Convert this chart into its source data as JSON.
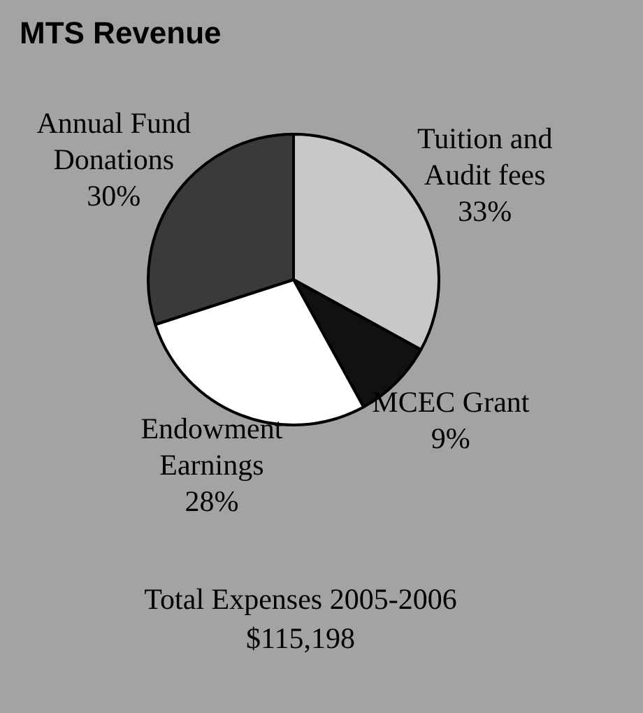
{
  "chart_data": {
    "type": "pie",
    "title": "MTS Revenue",
    "categories": [
      "Tuition and Audit fees",
      "MCEC Grant",
      "Endowment Earnings",
      "Annual Fund Donations"
    ],
    "values": [
      33,
      9,
      28,
      30
    ],
    "value_labels": [
      "33%",
      "9%",
      "28%",
      "30%"
    ],
    "colors": [
      "#c8c8c8",
      "#111111",
      "#ffffff",
      "#3a3a3a"
    ],
    "legend": false,
    "annotations": [
      "Total Expenses 2005-2006",
      "$115,198"
    ]
  }
}
